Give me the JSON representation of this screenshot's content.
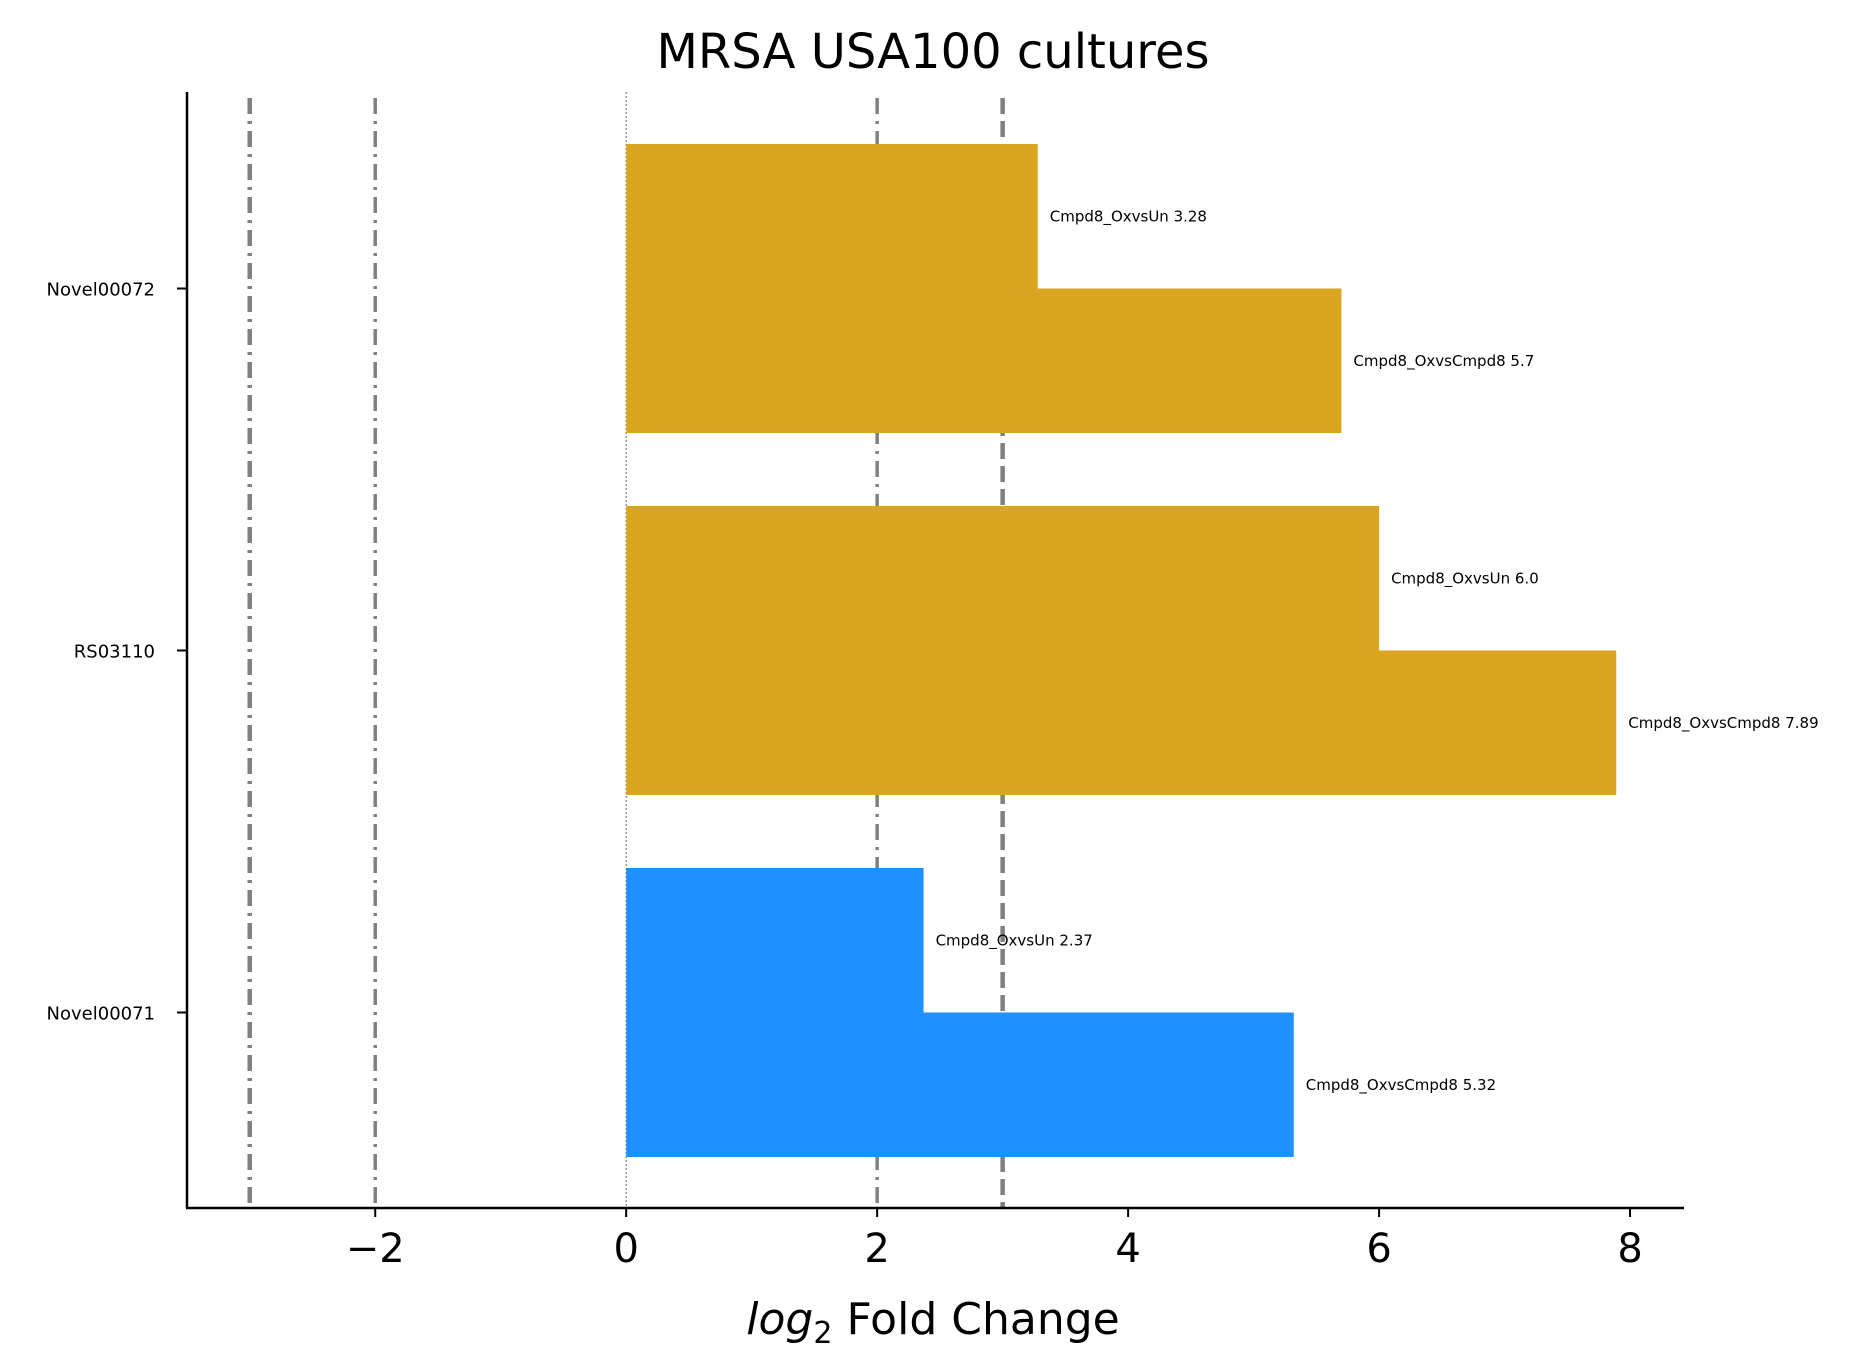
{
  "chart_data": {
    "type": "bar",
    "orientation": "horizontal",
    "title": "MRSA USA100 cultures",
    "xlabel_var": "log",
    "xlabel_sub": "2",
    "xlabel_rest": " Fold Change",
    "xlim": [
      -3.5,
      8.43
    ],
    "x_ticks": [
      -2,
      0,
      2,
      4,
      6,
      8
    ],
    "x_tick_labels": [
      "−2",
      "0",
      "2",
      "4",
      "6",
      "8"
    ],
    "categories": [
      "Novel00072",
      "RS03110",
      "Novel00071"
    ],
    "groups": [
      {
        "category": "Novel00072",
        "color": "#DAA520",
        "bars": [
          {
            "label": "Cmpd8_OxvsUn 3.28",
            "value": 3.28
          },
          {
            "label": "Cmpd8_OxvsCmpd8 5.7",
            "value": 5.7
          }
        ]
      },
      {
        "category": "RS03110",
        "color": "#DAA520",
        "bars": [
          {
            "label": "Cmpd8_OxvsUn 6.0",
            "value": 6.0
          },
          {
            "label": "Cmpd8_OxvsCmpd8 7.89",
            "value": 7.89
          }
        ]
      },
      {
        "category": "Novel00071",
        "color": "#1E90FF",
        "bars": [
          {
            "label": "Cmpd8_OxvsUn 2.37",
            "value": 2.37
          },
          {
            "label": "Cmpd8_OxvsCmpd8 5.32",
            "value": 5.32
          }
        ]
      }
    ],
    "reference_lines": [
      {
        "x": -3,
        "style": "dashdot",
        "weight": "heavy"
      },
      {
        "x": -2,
        "style": "dashdot",
        "weight": "light"
      },
      {
        "x": 0,
        "style": "dotted",
        "weight": "thin"
      },
      {
        "x": 2,
        "style": "dashdot",
        "weight": "light"
      },
      {
        "x": 3,
        "style": "dashed",
        "weight": "heavy"
      }
    ],
    "grid": false
  }
}
